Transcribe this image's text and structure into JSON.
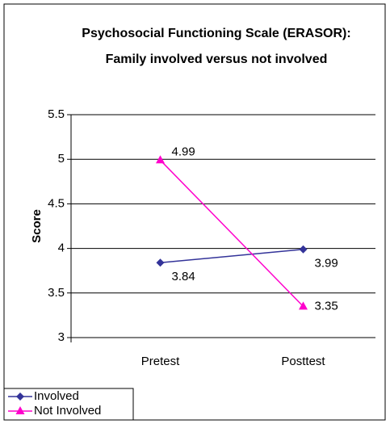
{
  "chart_data": {
    "type": "line",
    "title": [
      "Psychosocial Functioning Scale (ERASOR):",
      "Family involved versus not involved"
    ],
    "ylabel": "Score",
    "categories": [
      "Pretest",
      "Posttest"
    ],
    "series": [
      {
        "name": "Involved",
        "color": "#333399",
        "marker": "diamond",
        "values": [
          3.84,
          3.99
        ]
      },
      {
        "name": "Not Involved",
        "color": "#ff00cc",
        "marker": "triangle",
        "values": [
          4.99,
          3.35
        ]
      }
    ],
    "ylim": [
      3,
      5.5
    ],
    "yticks": [
      3,
      3.5,
      4,
      4.5,
      5,
      5.5
    ],
    "grid": true,
    "legend": "bottom-left"
  }
}
